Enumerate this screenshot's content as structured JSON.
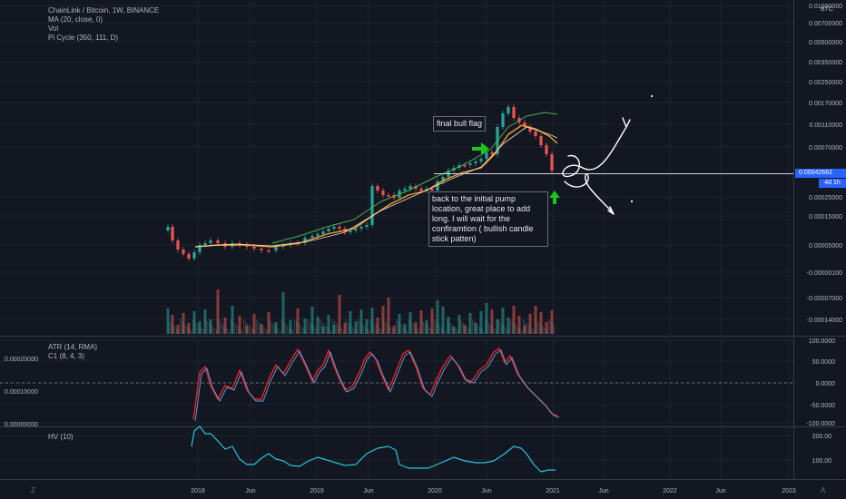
{
  "legend_main": [
    "ChainLink / Bitcoin, 1W, BINANCE",
    "MA (20, close, 0)",
    "Vol",
    "Pi Cycle (350, 111, D)"
  ],
  "legend_atr": [
    "ATR (14, RMA)",
    "C1 (8, 4, 3)"
  ],
  "legend_hv": [
    "HV (10)"
  ],
  "price_axis_labels": [
    "0.01000000",
    "0.00700000",
    "0.00500000",
    "0.00350000",
    "0.00250000",
    "0.00170000",
    "0.00110000",
    "0.00070000",
    "0.00025000",
    "0.00015000",
    "0.00005000",
    "-0.00000100",
    "-0.00007000",
    "-0.00014000"
  ],
  "currency_label": "BTC",
  "current_price": "0.00042662",
  "time_to_close": "4d 1h",
  "atr_left_labels": [
    "0.00020000",
    "0.00010000",
    "0.00000000"
  ],
  "atr_right_labels": [
    "100.0000",
    "50.0000",
    "0.0000",
    "-50.0000",
    "-100.0000"
  ],
  "hv_right_labels": [
    "200.00",
    "100.00"
  ],
  "time_axis_labels": [
    "2018",
    "Jun",
    "2019",
    "Jun",
    "2020",
    "Jun",
    "2021",
    "Jun",
    "2022",
    "Jun",
    "2023"
  ],
  "annotations": {
    "flag": "final bull flag",
    "note": "back to the initial pump location, great place to add long. I will wait for the confiramtion ( bullish candle stick patten)"
  },
  "corner_left": "Z",
  "corner_right": "A",
  "colors": {
    "background": "#131722",
    "up": "#26a69a",
    "down": "#ef5350",
    "ma": "#f0a030",
    "pi_cycle": "#4caf50",
    "atr": "#ef2020",
    "c1": "#5b9bd5",
    "hv": "#26c6da",
    "badge": "#2962ff",
    "arrow": "#1bc51b"
  }
}
